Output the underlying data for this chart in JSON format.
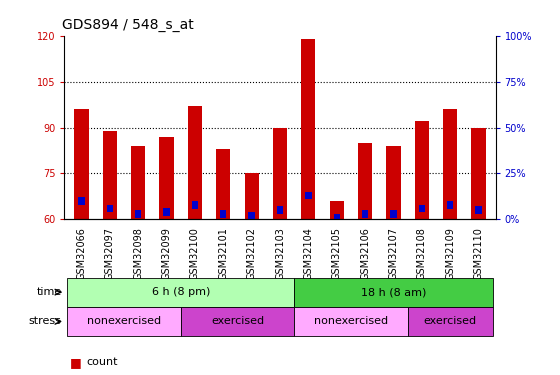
{
  "title": "GDS894 / 548_s_at",
  "samples": [
    "GSM32066",
    "GSM32097",
    "GSM32098",
    "GSM32099",
    "GSM32100",
    "GSM32101",
    "GSM32102",
    "GSM32103",
    "GSM32104",
    "GSM32105",
    "GSM32106",
    "GSM32107",
    "GSM32108",
    "GSM32109",
    "GSM32110"
  ],
  "count_values": [
    96,
    89,
    84,
    87,
    97,
    83,
    75,
    90,
    119,
    66,
    85,
    84,
    92,
    96,
    90
  ],
  "percentile_values": [
    10,
    6,
    3,
    4,
    8,
    3,
    2,
    5,
    13,
    1,
    3,
    3,
    6,
    8,
    5
  ],
  "ymin": 60,
  "ymax": 120,
  "yticks": [
    60,
    75,
    90,
    105,
    120
  ],
  "right_yticks": [
    0,
    25,
    50,
    75,
    100
  ],
  "bar_color": "#cc0000",
  "blue_color": "#0000cc",
  "bg_color": "#ffffff",
  "tick_label_color_left": "#cc0000",
  "tick_label_color_right": "#0000cc",
  "grid_color": "#000000",
  "time_groups": [
    {
      "label": "6 h (8 pm)",
      "start": 0,
      "end": 8,
      "color": "#b2ffb2"
    },
    {
      "label": "18 h (8 am)",
      "start": 8,
      "end": 15,
      "color": "#44cc44"
    }
  ],
  "stress_groups": [
    {
      "label": "nonexercised",
      "start": 0,
      "end": 4,
      "color": "#ffaaff"
    },
    {
      "label": "exercised",
      "start": 4,
      "end": 8,
      "color": "#cc44cc"
    },
    {
      "label": "nonexercised",
      "start": 8,
      "end": 12,
      "color": "#ffaaff"
    },
    {
      "label": "exercised",
      "start": 12,
      "end": 15,
      "color": "#cc44cc"
    }
  ],
  "legend_count_color": "#cc0000",
  "legend_pct_color": "#0000cc",
  "bar_width": 0.5,
  "title_fontsize": 10,
  "tick_fontsize": 7,
  "annot_fontsize": 8,
  "legend_fontsize": 8
}
